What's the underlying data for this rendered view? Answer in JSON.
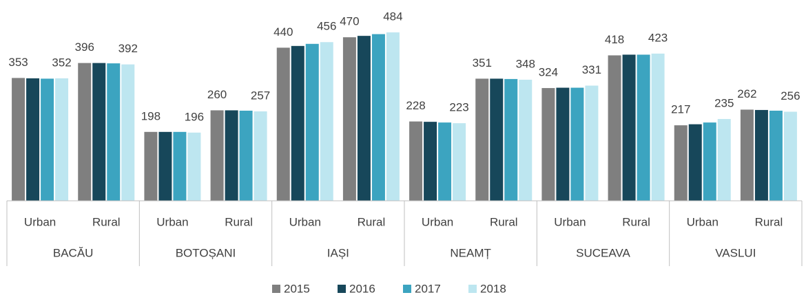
{
  "chart_data": {
    "type": "bar",
    "categories": [
      "Urban",
      "Rural",
      "Urban",
      "Rural",
      "Urban",
      "Rural",
      "Urban",
      "Rural",
      "Urban",
      "Rural",
      "Urban",
      "Rural"
    ],
    "groups": [
      "BACĂU",
      "BOTOȘANI",
      "IAȘI",
      "NEAMȚ",
      "SUCEAVA",
      "VASLUI"
    ],
    "series": [
      {
        "name": "2015",
        "color": "#7f7f7f",
        "data_labels": true,
        "values": [
          353,
          396,
          198,
          260,
          440,
          470,
          228,
          351,
          324,
          418,
          217,
          262
        ]
      },
      {
        "name": "2016",
        "color": "#17475a",
        "data_labels": false,
        "values": [
          352,
          396,
          198,
          260,
          445,
          474,
          227,
          351,
          325,
          420,
          220,
          261
        ]
      },
      {
        "name": "2017",
        "color": "#3ca4c0",
        "data_labels": false,
        "values": [
          351,
          395,
          198,
          259,
          451,
          479,
          225,
          350,
          325,
          420,
          225,
          259
        ]
      },
      {
        "name": "2018",
        "color": "#bde6f0",
        "data_labels": true,
        "values": [
          352,
          392,
          196,
          257,
          456,
          484,
          223,
          348,
          331,
          423,
          235,
          256
        ]
      }
    ],
    "ylim": [
      0,
      500
    ],
    "legend": "bottom"
  }
}
